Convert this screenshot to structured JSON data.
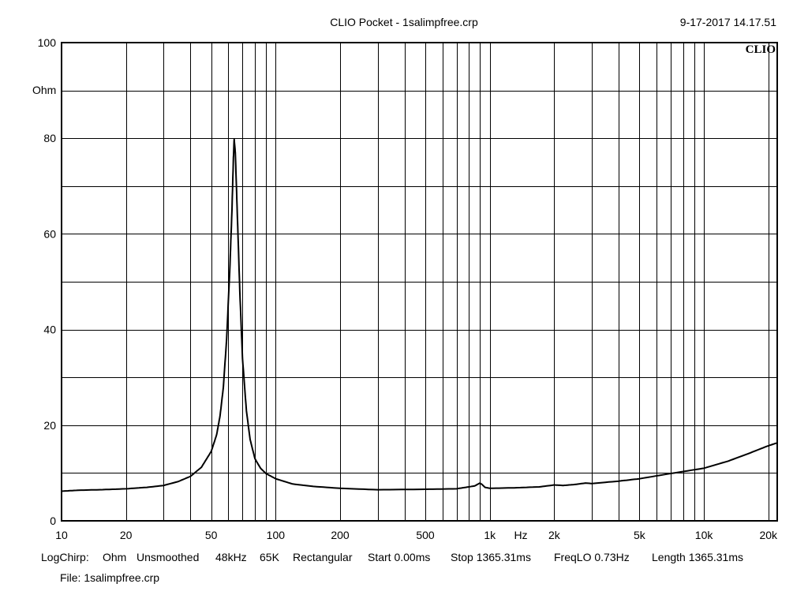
{
  "header": {
    "title": "CLIO Pocket - 1salimpfree.crp",
    "datetime": "9-17-2017 14.17.51"
  },
  "brand": "CLIO",
  "footer": {
    "settings": [
      "LogChirp:",
      "Ohm",
      "Unsmoothed",
      "48kHz",
      "65K",
      "Rectangular",
      "Start 0.00ms",
      "Stop 1365.31ms",
      "FreqLO 0.73Hz",
      "Length 1365.31ms"
    ],
    "file": "File: 1salimpfree.crp"
  },
  "chart_data": {
    "type": "line",
    "title": "",
    "xlabel": "Hz",
    "ylabel": "Ohm",
    "xscale": "log",
    "xlim": [
      10,
      22000
    ],
    "ylim": [
      0,
      100
    ],
    "grid": true,
    "x_ticks": [
      {
        "value": 10,
        "label": "10"
      },
      {
        "value": 20,
        "label": "20"
      },
      {
        "value": 50,
        "label": "50"
      },
      {
        "value": 100,
        "label": "100"
      },
      {
        "value": 200,
        "label": "200"
      },
      {
        "value": 500,
        "label": "500"
      },
      {
        "value": 1000,
        "label": "1k"
      },
      {
        "value": 2000,
        "label": "2k"
      },
      {
        "value": 5000,
        "label": "5k"
      },
      {
        "value": 10000,
        "label": "10k"
      },
      {
        "value": 20000,
        "label": "20k"
      }
    ],
    "y_ticks": [
      {
        "value": 100,
        "label": "100"
      },
      {
        "value": 80,
        "label": "80"
      },
      {
        "value": 60,
        "label": "60"
      },
      {
        "value": 40,
        "label": "40"
      },
      {
        "value": 20,
        "label": "20"
      },
      {
        "value": 0,
        "label": "0"
      }
    ],
    "series": [
      {
        "color": "#000000",
        "points": [
          [
            10,
            6.2
          ],
          [
            12,
            6.4
          ],
          [
            15,
            6.5
          ],
          [
            20,
            6.7
          ],
          [
            25,
            7.0
          ],
          [
            30,
            7.4
          ],
          [
            35,
            8.2
          ],
          [
            40,
            9.3
          ],
          [
            45,
            11.2
          ],
          [
            50,
            14.5
          ],
          [
            53,
            18.0
          ],
          [
            55,
            22.0
          ],
          [
            57,
            28.0
          ],
          [
            59,
            38.0
          ],
          [
            61,
            52.0
          ],
          [
            62.5,
            65.0
          ],
          [
            63.5,
            76.0
          ],
          [
            64,
            79.8
          ],
          [
            64.8,
            77.0
          ],
          [
            66,
            66.0
          ],
          [
            68,
            48.0
          ],
          [
            70,
            34.0
          ],
          [
            73,
            23.0
          ],
          [
            76,
            17.0
          ],
          [
            80,
            13.0
          ],
          [
            85,
            11.0
          ],
          [
            90,
            9.9
          ],
          [
            100,
            8.8
          ],
          [
            120,
            7.7
          ],
          [
            150,
            7.2
          ],
          [
            200,
            6.8
          ],
          [
            300,
            6.5
          ],
          [
            500,
            6.6
          ],
          [
            700,
            6.7
          ],
          [
            850,
            7.3
          ],
          [
            900,
            7.9
          ],
          [
            920,
            7.6
          ],
          [
            950,
            7.0
          ],
          [
            1000,
            6.8
          ],
          [
            1300,
            6.9
          ],
          [
            1700,
            7.1
          ],
          [
            2000,
            7.5
          ],
          [
            2200,
            7.4
          ],
          [
            2500,
            7.6
          ],
          [
            2800,
            7.9
          ],
          [
            3000,
            7.8
          ],
          [
            4000,
            8.3
          ],
          [
            5000,
            8.8
          ],
          [
            7000,
            9.9
          ],
          [
            10000,
            11.0
          ],
          [
            13000,
            12.5
          ],
          [
            16000,
            14.0
          ],
          [
            20000,
            15.7
          ],
          [
            22000,
            16.3
          ]
        ]
      }
    ]
  }
}
